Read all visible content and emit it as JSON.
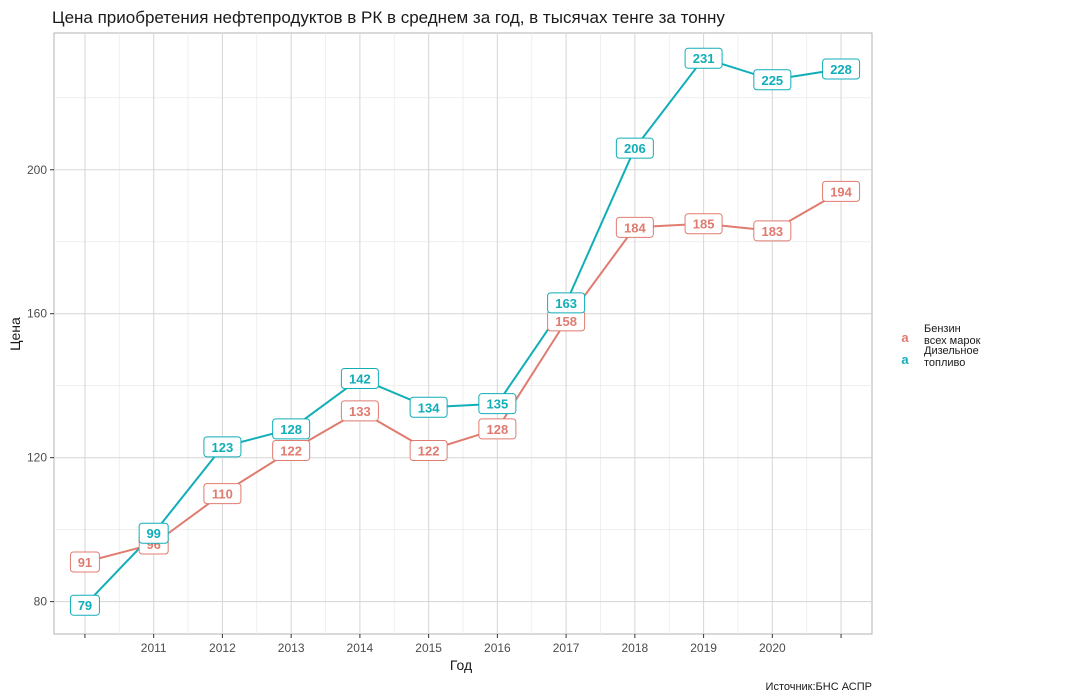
{
  "chart_data": {
    "type": "line",
    "title": "Цена приобретения нефтепродуктов в РК в среднем за год, в тысячах тенге за тонну",
    "xlabel": "Год",
    "ylabel": "Цена",
    "caption": "Источник:БНС АСПР",
    "x": [
      2010,
      2011,
      2012,
      2013,
      2014,
      2015,
      2016,
      2017,
      2018,
      2019,
      2020,
      2021
    ],
    "x_tick_labels": [
      "2011",
      "2012",
      "2013",
      "2014",
      "2015",
      "2016",
      "2017",
      "2018",
      "2019",
      "2020"
    ],
    "y_ticks": [
      80,
      120,
      160,
      200
    ],
    "ylim": [
      71,
      238
    ],
    "xlim": [
      2009.55,
      2021.45
    ],
    "grid": true,
    "legend_position": "right",
    "legend_key_glyph": "a",
    "series": [
      {
        "name_lines": [
          "Бензин",
          "всех марок"
        ],
        "color": "#E07B70",
        "values": [
          91,
          96,
          110,
          122,
          133,
          122,
          128,
          158,
          184,
          185,
          183,
          194
        ]
      },
      {
        "name_lines": [
          "Дизельное",
          "топливо"
        ],
        "color": "#11AEB8",
        "values": [
          79,
          99,
          123,
          128,
          142,
          134,
          135,
          163,
          206,
          231,
          225,
          228
        ]
      }
    ]
  }
}
